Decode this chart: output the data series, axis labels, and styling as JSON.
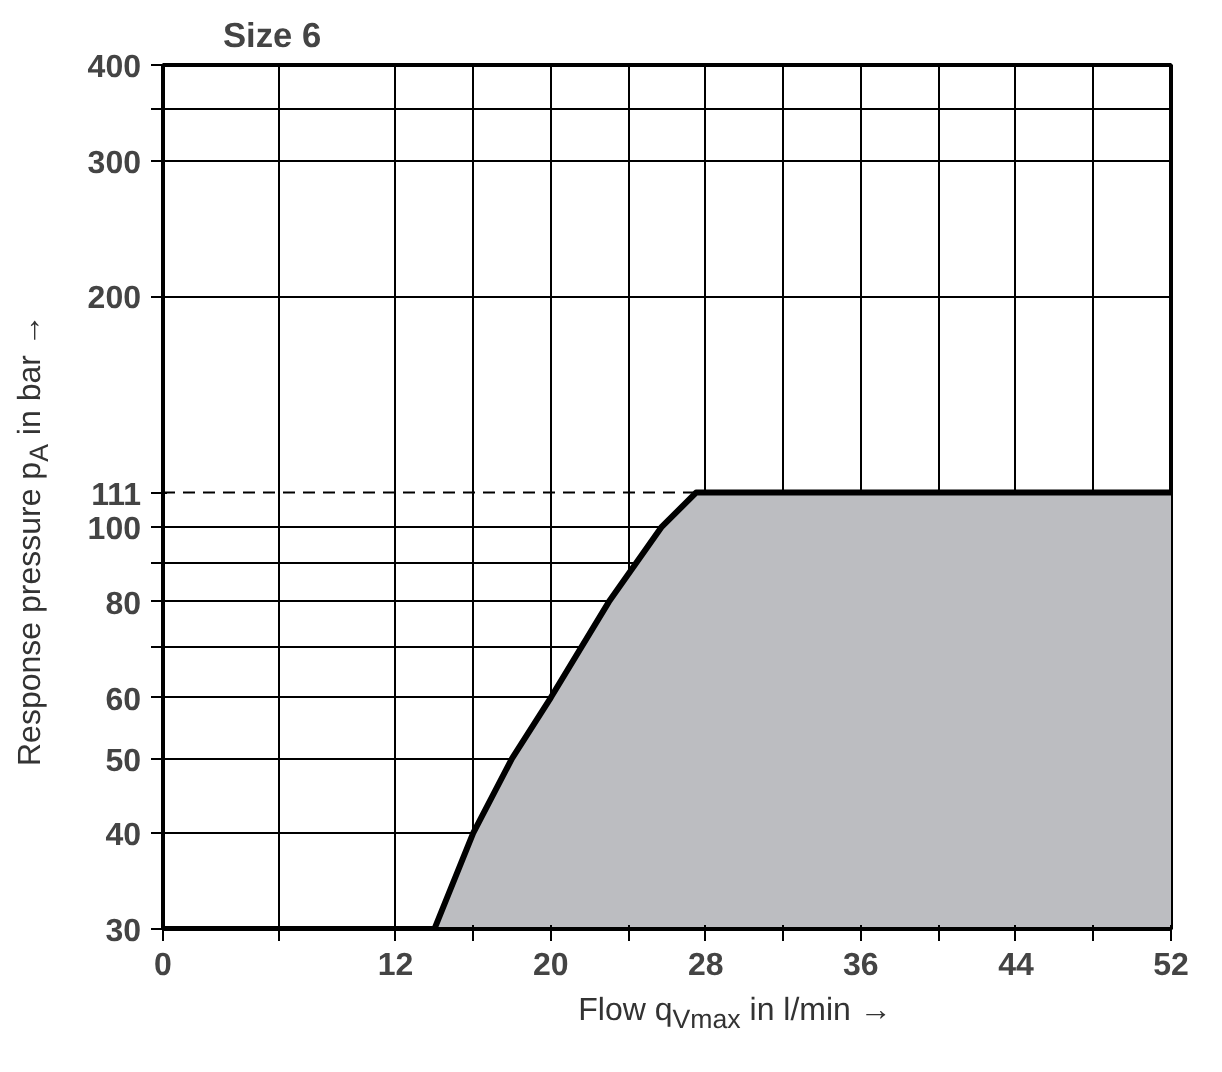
{
  "chart_data": {
    "type": "area",
    "title": "Size 6",
    "xlabel": "Flow q$_{Vmax}$ in l/min →",
    "ylabel": "Response pressure p$_{A}$ in bar →",
    "x": [
      0,
      14,
      16,
      18,
      20,
      23,
      25.7,
      27.5,
      52
    ],
    "series": [
      {
        "color": "#bcbdc1",
        "values": [
          30,
          30,
          40,
          50,
          60,
          80,
          100,
          111,
          111
        ]
      }
    ],
    "xlim": [
      0,
      52
    ],
    "ylim": [
      30,
      400
    ],
    "log": "y",
    "xticks": [
      0,
      {
        "value": 6,
        "label": null
      },
      12,
      {
        "value": 16,
        "label": null
      },
      20,
      {
        "value": 24,
        "label": null
      },
      28,
      {
        "value": 32,
        "label": null
      },
      36,
      {
        "value": 40,
        "label": null
      },
      44,
      {
        "value": 48,
        "label": null
      },
      52
    ],
    "yticks": [
      30,
      40,
      50,
      60,
      {
        "value": 70,
        "label": null
      },
      80,
      {
        "value": 90,
        "label": null
      },
      100,
      111,
      200,
      300,
      {
        "value": 350,
        "label": null
      },
      400
    ],
    "ref_lines": [
      {
        "axis": "y",
        "value": 111,
        "label": null,
        "line_style": "dashed"
      }
    ],
    "grid": true,
    "line_style": "solid"
  }
}
